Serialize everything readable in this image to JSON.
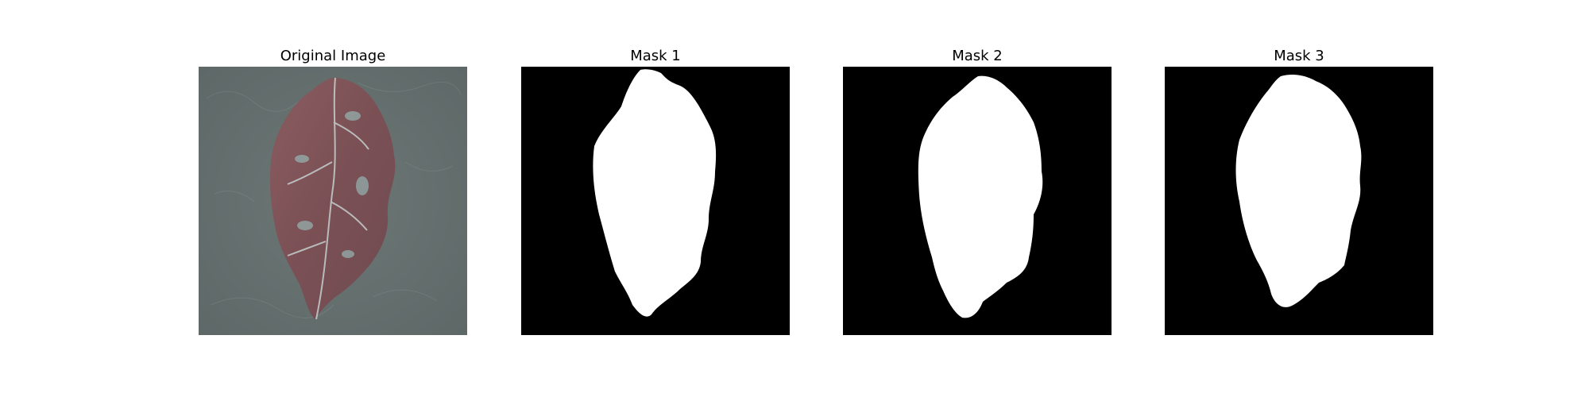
{
  "figure": {
    "panels": [
      {
        "title": "Original Image"
      },
      {
        "title": "Mask 1"
      },
      {
        "title": "Mask 2"
      },
      {
        "title": "Mask 3"
      }
    ]
  },
  "colors": {
    "background": "#ffffff",
    "mask_background": "#000000",
    "mask_foreground": "#ffffff",
    "photo_background": "#6f7a78",
    "leaf": "#7d5457"
  }
}
